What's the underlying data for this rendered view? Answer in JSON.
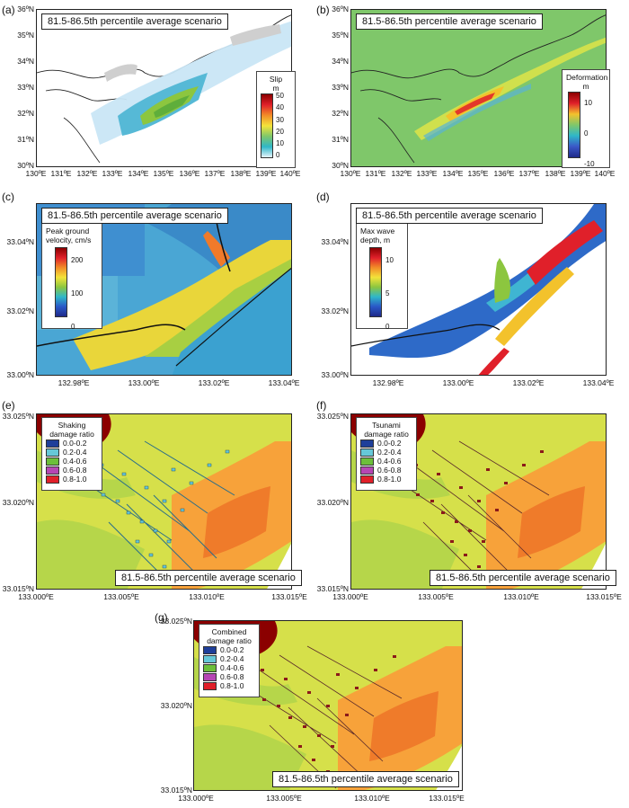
{
  "scenario_title": "81.5-86.5th percentile average scenario",
  "panels": {
    "a": {
      "letter": "(a)",
      "yticks": [
        "36ºN",
        "35ºN",
        "34ºN",
        "33ºN",
        "32ºN",
        "31ºN",
        "30ºN"
      ],
      "xticks": [
        "130ºE",
        "131ºE",
        "132ºE",
        "133ºE",
        "134ºE",
        "135ºE",
        "136ºE",
        "137ºE",
        "138ºE",
        "139ºE",
        "140ºE"
      ],
      "legend": {
        "title1": "Slip",
        "title2": "m",
        "labels": [
          "50",
          "40",
          "30",
          "20",
          "10",
          "0"
        ]
      }
    },
    "b": {
      "letter": "(b)",
      "yticks": [
        "36ºN",
        "35ºN",
        "34ºN",
        "33ºN",
        "32ºN",
        "31ºN",
        "30ºN"
      ],
      "xticks": [
        "130ºE",
        "131ºE",
        "132ºE",
        "133ºE",
        "134ºE",
        "135ºE",
        "136ºE",
        "137ºE",
        "138ºE",
        "139ºE",
        "140ºE"
      ],
      "legend": {
        "title1": "Deformation",
        "title2": "m",
        "labels": [
          "10",
          "0",
          "-10"
        ]
      }
    },
    "c": {
      "letter": "(c)",
      "yticks": [
        "33.04ºN",
        "33.02ºN",
        "33.00ºN"
      ],
      "xticks": [
        "132.98ºE",
        "133.00ºE",
        "133.02ºE",
        "133.04ºE"
      ],
      "legend": {
        "title1": "Peak ground",
        "title2": "velocity, cm/s",
        "labels": [
          "200",
          "100",
          "0"
        ]
      }
    },
    "d": {
      "letter": "(d)",
      "yticks": [
        "33.04ºN",
        "33.02ºN",
        "33.00ºN"
      ],
      "xticks": [
        "132.98ºE",
        "133.00ºE",
        "133.02ºE",
        "133.04ºE"
      ],
      "legend": {
        "title1": "Max wave",
        "title2": "depth, m",
        "labels": [
          "10",
          "5",
          "0"
        ]
      }
    },
    "e": {
      "letter": "(e)",
      "yticks": [
        "33.025ºN",
        "33.020ºN",
        "33.015ºN"
      ],
      "xticks": [
        "133.000ºE",
        "133.005ºE",
        "133.010ºE",
        "133.015ºE"
      ],
      "legend": {
        "title1": "Shaking",
        "title2": "damage ratio"
      }
    },
    "f": {
      "letter": "(f)",
      "yticks": [
        "33.025ºN",
        "33.020ºN",
        "33.015ºN"
      ],
      "xticks": [
        "133.000ºE",
        "133.005ºE",
        "133.010ºE",
        "133.015ºE"
      ],
      "legend": {
        "title1": "Tsunami",
        "title2": "damage ratio"
      }
    },
    "g": {
      "letter": "(g)",
      "yticks": [
        "33.025ºN",
        "33.020ºN",
        "33.015ºN"
      ],
      "xticks": [
        "133.000ºE",
        "133.005ºE",
        "133.010ºE",
        "133.015ºE"
      ],
      "legend": {
        "title1": "Combined",
        "title2": "damage ratio"
      }
    }
  },
  "damage_categories": [
    "0.0-0.2",
    "0.2-0.4",
    "0.4-0.6",
    "0.6-0.8",
    "0.8-1.0"
  ],
  "colors": {
    "damage": [
      "#1f3f9a",
      "#66c8d8",
      "#6cbf3a",
      "#b646b4",
      "#e0202a"
    ],
    "deformation_background": "#7fc76a",
    "pgv_background": "#4aa6d4",
    "damage_background": "#d6e04a",
    "sea": "#ffffff"
  }
}
